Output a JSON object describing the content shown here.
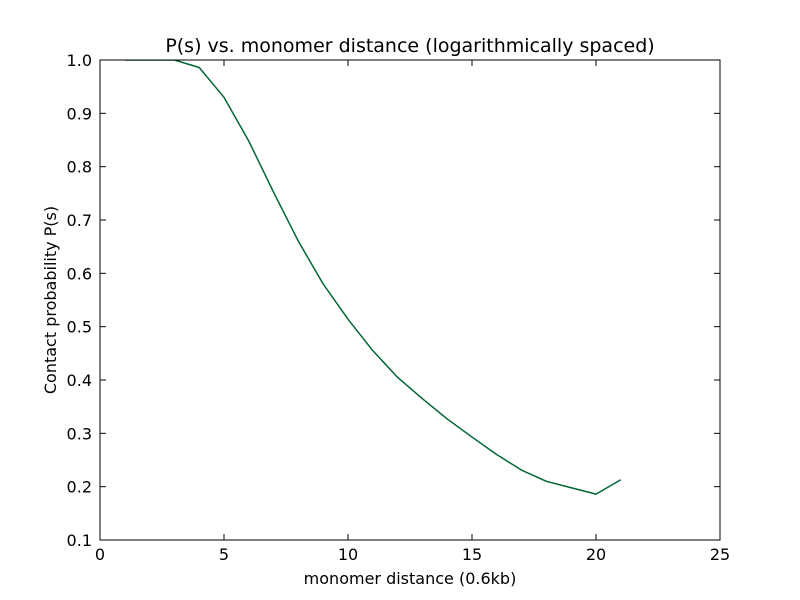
{
  "chart_data": {
    "type": "line",
    "title": "P(s) vs. monomer distance (logarithmically spaced)",
    "xlabel": "monomer distance (0.6kb)",
    "ylabel": "Contact probability P(s)",
    "xlim": [
      0,
      25
    ],
    "ylim": [
      0.1,
      1.0
    ],
    "xticks": [
      0,
      5,
      10,
      15,
      20,
      25
    ],
    "xtick_labels": [
      "0",
      "5",
      "10",
      "15",
      "20",
      "25"
    ],
    "yticks": [
      0.1,
      0.2,
      0.3,
      0.4,
      0.5,
      0.6,
      0.7,
      0.8,
      0.9,
      1.0
    ],
    "ytick_labels": [
      "0.1",
      "0.2",
      "0.3",
      "0.4",
      "0.5",
      "0.6",
      "0.7",
      "0.8",
      "0.9",
      "1.0"
    ],
    "grid": false,
    "legend": false,
    "series": [
      {
        "color": "#006633",
        "x": [
          1,
          2,
          3,
          4,
          5,
          6,
          7,
          8,
          9,
          10,
          11,
          12,
          13,
          14,
          15,
          16,
          17,
          18,
          19,
          20,
          21
        ],
        "y": [
          1.0,
          1.0,
          1.0,
          0.986,
          0.93,
          0.848,
          0.752,
          0.66,
          0.58,
          0.514,
          0.455,
          0.405,
          0.365,
          0.327,
          0.293,
          0.26,
          0.231,
          0.21,
          0.198,
          0.186,
          0.213
        ]
      }
    ]
  }
}
